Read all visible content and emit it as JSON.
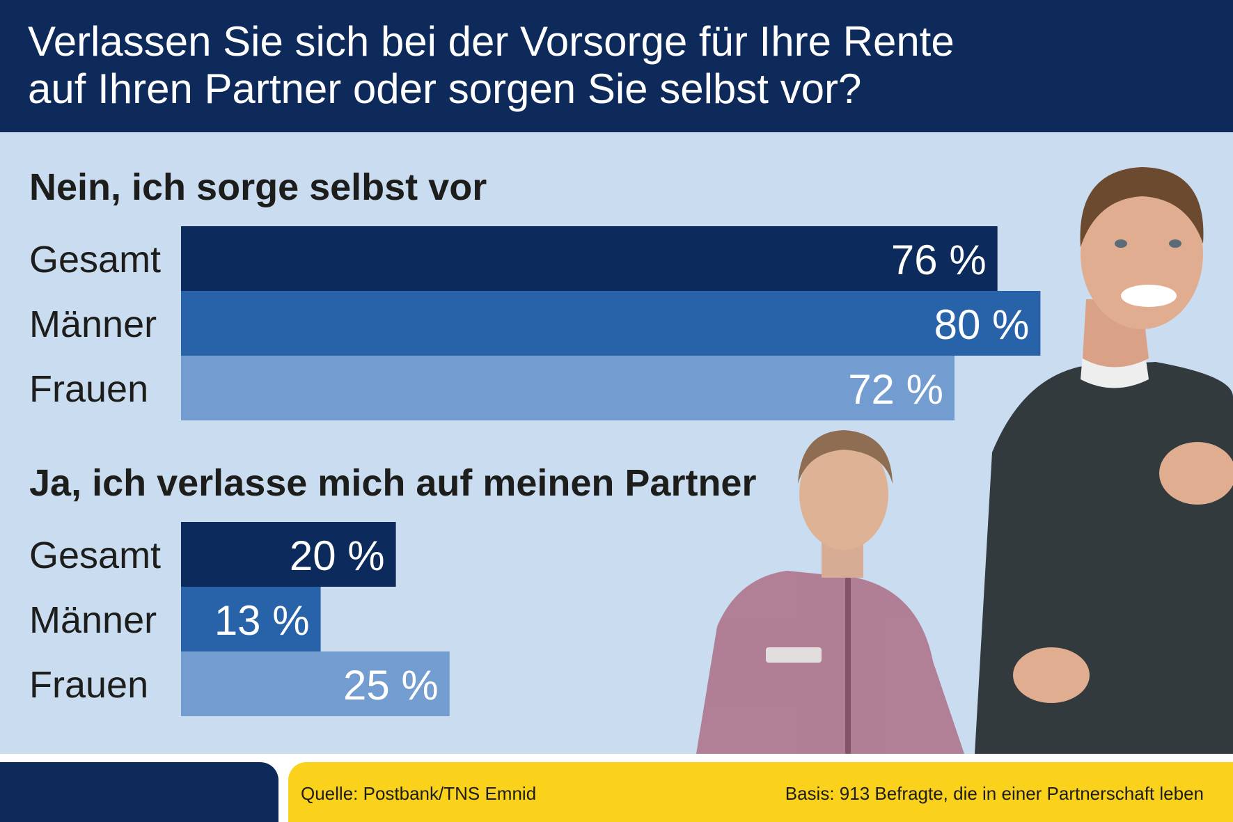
{
  "header": {
    "title_line1": "Verlassen Sie sich bei der Vorsorge für Ihre Rente",
    "title_line2": "auf Ihren Partner oder sorgen Sie selbst vor?"
  },
  "footer": {
    "source": "Quelle: Postbank/TNS Emnid",
    "basis": "Basis: 913 Befragte, die in einer Partnerschaft leben"
  },
  "colors": {
    "header_bg": "#0d2a5b",
    "panel_bg": "#cadcf0",
    "footer_accent": "#fbd21b",
    "gesamt": "#0c2a5b",
    "maenner": "#2862a8",
    "frauen": "#739dd0"
  },
  "chart_data": [
    {
      "type": "bar",
      "orientation": "horizontal",
      "title": "Nein, ich sorge selbst vor",
      "categories": [
        "Gesamt",
        "Männer",
        "Frauen"
      ],
      "values": [
        76,
        80,
        72
      ],
      "value_labels": [
        "76 %",
        "80 %",
        "72 %"
      ],
      "unit": "%",
      "xlim": [
        0,
        100
      ],
      "grid": false
    },
    {
      "type": "bar",
      "orientation": "horizontal",
      "title": "Ja, ich verlasse mich auf meinen Partner",
      "categories": [
        "Gesamt",
        "Männer",
        "Frauen"
      ],
      "values": [
        20,
        13,
        25
      ],
      "value_labels": [
        "20 %",
        "13 %",
        "25 %"
      ],
      "unit": "%",
      "xlim": [
        0,
        100
      ],
      "grid": false
    }
  ]
}
